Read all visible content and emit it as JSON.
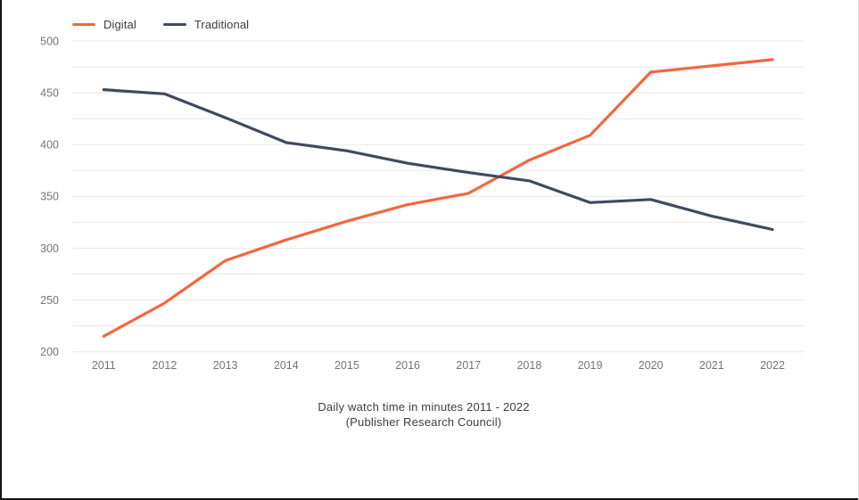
{
  "window": {
    "background": "#ffffff",
    "border_left_color": "#141414",
    "border_bottom_color": "#141414",
    "border_right_color": "#d8d8d8"
  },
  "legend": {
    "position": "top-left",
    "items": [
      {
        "label": "Digital",
        "color": "#F2673F"
      },
      {
        "label": "Traditional",
        "color": "#3F4B5C"
      }
    ]
  },
  "chart_data": {
    "type": "line",
    "title": "Daily watch time in minutes 2011 - 2022",
    "subtitle": "(Publisher Research Council)",
    "x": [
      2011,
      2012,
      2013,
      2014,
      2015,
      2016,
      2017,
      2018,
      2019,
      2020,
      2021,
      2022
    ],
    "series": [
      {
        "name": "Digital",
        "color": "#F2673F",
        "values": [
          215,
          247,
          288,
          308,
          326,
          342,
          353,
          385,
          409,
          470,
          476,
          482
        ]
      },
      {
        "name": "Traditional",
        "color": "#3F4B5C",
        "values": [
          453,
          449,
          426,
          402,
          394,
          382,
          373,
          365,
          344,
          347,
          331,
          318
        ]
      }
    ],
    "ylim": [
      200,
      500
    ],
    "y_minor_step": 25,
    "y_tick_labels": [
      "500",
      "450",
      "400",
      "350",
      "300",
      "250",
      "200"
    ],
    "y_tick_values": [
      500,
      450,
      400,
      350,
      300,
      250,
      200
    ],
    "grid": true,
    "gridline_color": "#e8e8e8",
    "tick_label_color": "#757575",
    "legend_position": "top-left",
    "line_width": 3.2
  }
}
